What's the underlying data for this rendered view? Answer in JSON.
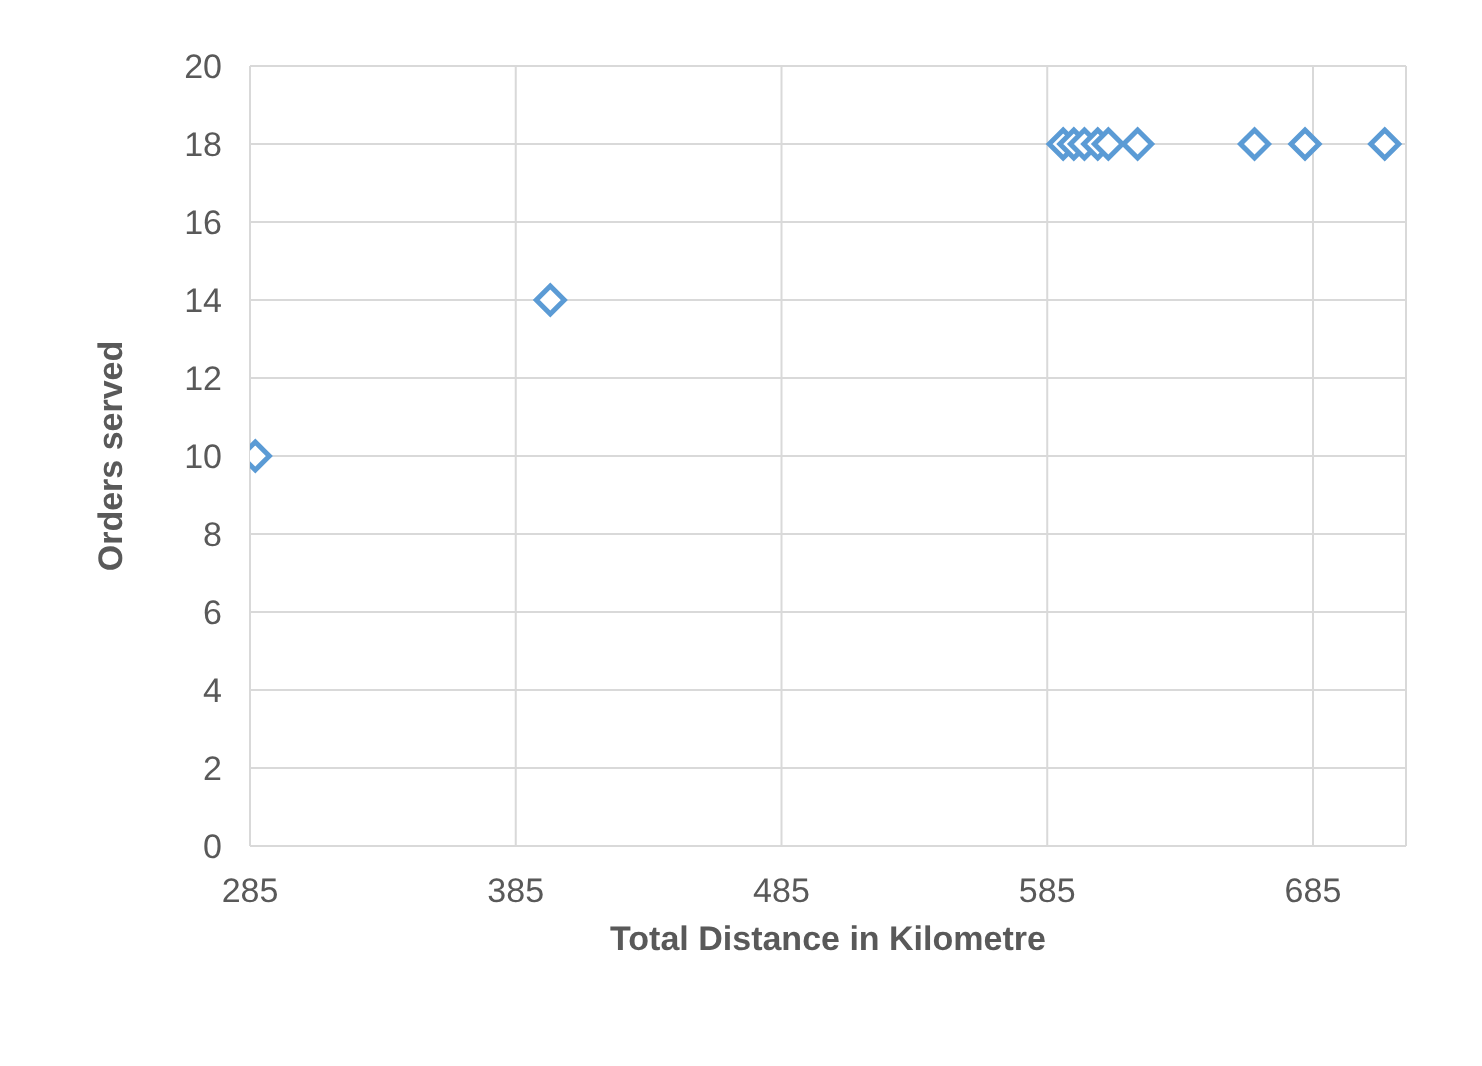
{
  "chart_data": {
    "type": "scatter",
    "xlabel": "Total Distance in Kilometre",
    "ylabel": "Orders served",
    "x": [
      287,
      398,
      591,
      595,
      599,
      604,
      608,
      619,
      663,
      682,
      712
    ],
    "series": [
      {
        "color": "#5b9bd5",
        "values": [
          10,
          14,
          18,
          18,
          18,
          18,
          18,
          18,
          18,
          18,
          18
        ]
      }
    ],
    "xlim": [
      285,
      720
    ],
    "xticks": [
      285,
      385,
      485,
      585,
      685
    ],
    "ylim": [
      0,
      20
    ],
    "yticks": [
      0,
      2,
      4,
      6,
      8,
      10,
      12,
      14,
      16,
      18,
      20
    ],
    "grid": true,
    "marker": "diamond"
  }
}
